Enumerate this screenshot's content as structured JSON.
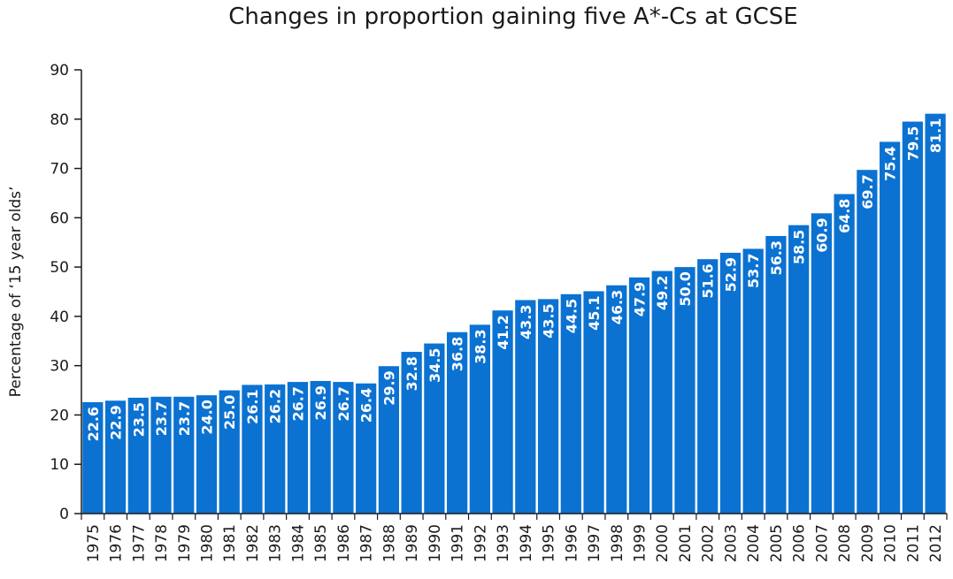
{
  "chart_data": {
    "type": "bar",
    "title": "Changes in proportion gaining five A*-Cs at GCSE",
    "xlabel": "",
    "ylabel": "Percentage of ‘15 year olds’",
    "ylim": [
      0,
      90
    ],
    "yticks": [
      0,
      10,
      20,
      30,
      40,
      50,
      60,
      70,
      80,
      90
    ],
    "grid": false,
    "bar_color": "#0b72d2",
    "categories": [
      "1975",
      "1976",
      "1977",
      "1978",
      "1979",
      "1980",
      "1981",
      "1982",
      "1983",
      "1984",
      "1985",
      "1986",
      "1987",
      "1988",
      "1989",
      "1990",
      "1991",
      "1992",
      "1993",
      "1994",
      "1995",
      "1996",
      "1997",
      "1998",
      "1999",
      "2000",
      "2001",
      "2002",
      "2003",
      "2004",
      "2005",
      "2006",
      "2007",
      "2008",
      "2009",
      "2010",
      "2011",
      "2012"
    ],
    "values": [
      22.6,
      22.9,
      23.5,
      23.7,
      23.7,
      24.0,
      25.0,
      26.1,
      26.2,
      26.7,
      26.9,
      26.7,
      26.4,
      29.9,
      32.8,
      34.5,
      36.8,
      38.3,
      41.2,
      43.3,
      43.5,
      44.5,
      45.1,
      46.3,
      47.9,
      49.2,
      50.0,
      51.6,
      52.9,
      53.7,
      56.3,
      58.5,
      60.9,
      64.8,
      69.7,
      75.4,
      79.5,
      81.1
    ],
    "value_labels": [
      "22.6",
      "22.9",
      "23.5",
      "23.7",
      "23.7",
      "24.0",
      "25.0",
      "26.1",
      "26.2",
      "26.7",
      "26.9",
      "26.7",
      "26.4",
      "29.9",
      "32.8",
      "34.5",
      "36.8",
      "38.3",
      "41.2",
      "43.3",
      "43.5",
      "44.5",
      "45.1",
      "46.3",
      "47.9",
      "49.2",
      "50.0",
      "51.6",
      "52.9",
      "53.7",
      "56.3",
      "58.5",
      "60.9",
      "64.8",
      "69.7",
      "75.4",
      "79.5",
      "81.1"
    ]
  }
}
